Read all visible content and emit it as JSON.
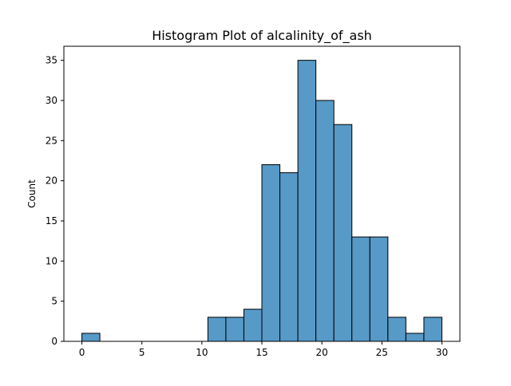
{
  "chart_data": {
    "type": "bar",
    "subtype": "histogram",
    "title": "Histogram Plot of alcalinity_of_ash",
    "xlabel": "",
    "ylabel": "Count",
    "bins": [
      {
        "start": 0.0,
        "end": 1.5,
        "count": 1
      },
      {
        "start": 1.5,
        "end": 3.0,
        "count": 0
      },
      {
        "start": 3.0,
        "end": 4.5,
        "count": 0
      },
      {
        "start": 4.5,
        "end": 6.0,
        "count": 0
      },
      {
        "start": 6.0,
        "end": 7.5,
        "count": 0
      },
      {
        "start": 7.5,
        "end": 9.0,
        "count": 0
      },
      {
        "start": 9.0,
        "end": 10.5,
        "count": 0
      },
      {
        "start": 10.5,
        "end": 12.0,
        "count": 3
      },
      {
        "start": 12.0,
        "end": 13.5,
        "count": 3
      },
      {
        "start": 13.5,
        "end": 15.0,
        "count": 4
      },
      {
        "start": 15.0,
        "end": 16.5,
        "count": 22
      },
      {
        "start": 16.5,
        "end": 18.0,
        "count": 21
      },
      {
        "start": 18.0,
        "end": 19.5,
        "count": 35
      },
      {
        "start": 19.5,
        "end": 21.0,
        "count": 30
      },
      {
        "start": 21.0,
        "end": 22.5,
        "count": 27
      },
      {
        "start": 22.5,
        "end": 24.0,
        "count": 13
      },
      {
        "start": 24.0,
        "end": 25.5,
        "count": 13
      },
      {
        "start": 25.5,
        "end": 27.0,
        "count": 3
      },
      {
        "start": 27.0,
        "end": 28.5,
        "count": 1
      },
      {
        "start": 28.5,
        "end": 30.0,
        "count": 3
      }
    ],
    "xlim": [
      -1.5,
      31.5
    ],
    "ylim": [
      0,
      36.75
    ],
    "xticks": [
      0,
      5,
      10,
      15,
      20,
      25,
      30
    ],
    "yticks": [
      0,
      5,
      10,
      15,
      20,
      25,
      30,
      35
    ],
    "grid": false,
    "legend": "none",
    "colors": {
      "bar_fill": "#5799c7",
      "bar_edge": "#000000",
      "axis": "#000000",
      "background": "#ffffff"
    }
  }
}
